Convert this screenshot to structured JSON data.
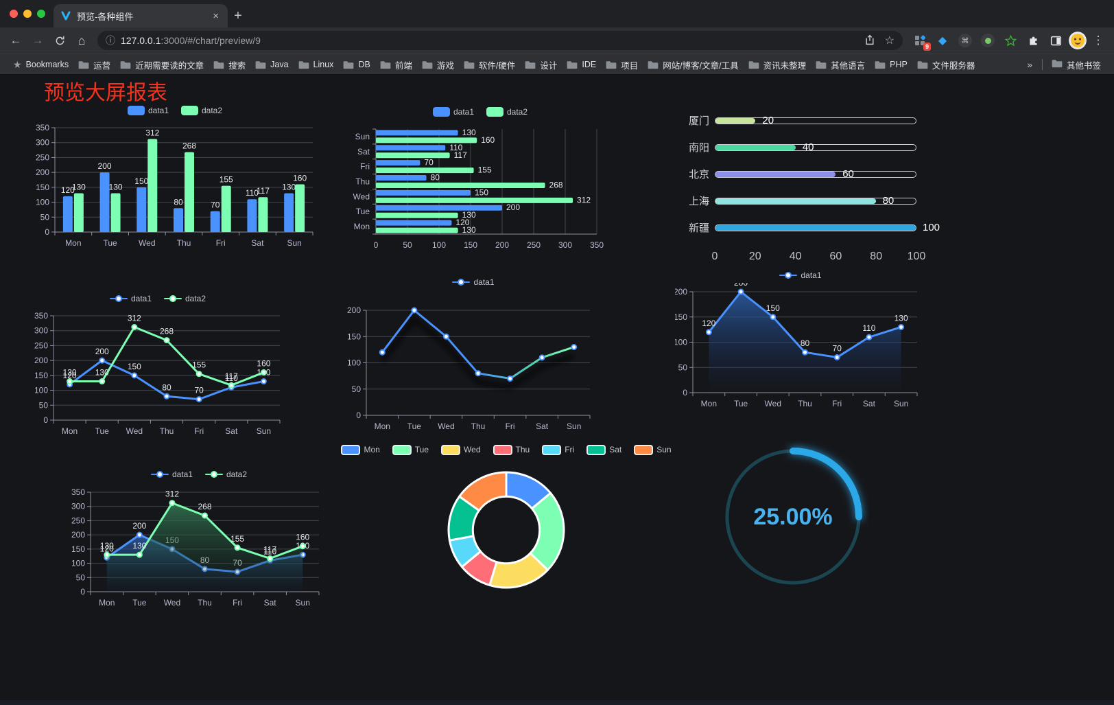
{
  "browser": {
    "window_controls": {
      "close": "#ff5f57",
      "minimize": "#febc2e",
      "zoom": "#28c840"
    },
    "tab": {
      "title": "预览-各种组件",
      "close_label": "×"
    },
    "new_tab_button": "+",
    "toolbar": {
      "back": "←",
      "forward": "→",
      "home": "⌂",
      "info": "ⓘ",
      "url_host": "127.0.0.1",
      "url_rest": ":3000/#/chart/preview/9",
      "extensions_badge": "9",
      "command_glyph": "⌘",
      "menu": "⋮",
      "star": "☆",
      "gem": "◆"
    },
    "bookmarks_bar": {
      "bookmarks_label": "Bookmarks",
      "folders": [
        "运营",
        "近期需要读的文章",
        "搜索",
        "Java",
        "Linux",
        "DB",
        "前端",
        "游戏",
        "软件/硬件",
        "设计",
        "IDE",
        "项目",
        "网站/博客/文章/工具",
        "资讯未整理",
        "其他语言",
        "PHP",
        "文件服务器"
      ],
      "overflow": "»",
      "other_bookmarks": "其他书签"
    }
  },
  "page": {
    "title": "预览大屏报表",
    "title_color": "#f5321c",
    "background": "#15161a"
  },
  "chart_data": [
    {
      "id": "bar-vertical",
      "type": "bar",
      "categories": [
        "Mon",
        "Tue",
        "Wed",
        "Thu",
        "Fri",
        "Sat",
        "Sun"
      ],
      "series": [
        {
          "name": "data1",
          "color": "#4992ff",
          "values": [
            120,
            200,
            150,
            80,
            70,
            110,
            130
          ]
        },
        {
          "name": "data2",
          "color": "#7cffb2",
          "values": [
            130,
            130,
            312,
            268,
            155,
            117,
            160
          ]
        }
      ],
      "ylim": [
        0,
        350
      ],
      "ytick_step": 50,
      "grid": true,
      "legend_position": "top"
    },
    {
      "id": "bar-horizontal",
      "type": "bar-horizontal",
      "categories": [
        "Mon",
        "Tue",
        "Wed",
        "Thu",
        "Fri",
        "Sat",
        "Sun"
      ],
      "series": [
        {
          "name": "data1",
          "color": "#4992ff",
          "values": [
            120,
            200,
            150,
            80,
            70,
            110,
            130
          ]
        },
        {
          "name": "data2",
          "color": "#7cffb2",
          "values": [
            130,
            130,
            312,
            268,
            155,
            117,
            160
          ]
        }
      ],
      "xlim": [
        0,
        350
      ],
      "xtick_step": 50,
      "grid": true,
      "legend_position": "top"
    },
    {
      "id": "city-progress",
      "type": "progress",
      "items": [
        {
          "label": "厦门",
          "value": 20,
          "color": "#c7e59b"
        },
        {
          "label": "南阳",
          "value": 40,
          "color": "#4cd7a0"
        },
        {
          "label": "北京",
          "value": 60,
          "color": "#8d90e8"
        },
        {
          "label": "上海",
          "value": 80,
          "color": "#8fe4df"
        },
        {
          "label": "新疆",
          "value": 100,
          "color": "#2ea7e0"
        }
      ],
      "max": 100,
      "ticks": [
        0,
        20,
        40,
        60,
        80,
        100
      ]
    },
    {
      "id": "line-dual",
      "type": "line",
      "categories": [
        "Mon",
        "Tue",
        "Wed",
        "Thu",
        "Fri",
        "Sat",
        "Sun"
      ],
      "series": [
        {
          "name": "data1",
          "color": "#4992ff",
          "values": [
            120,
            200,
            150,
            80,
            70,
            110,
            130
          ]
        },
        {
          "name": "data2",
          "color": "#7cffb2",
          "values": [
            130,
            130,
            312,
            268,
            155,
            117,
            160
          ]
        }
      ],
      "ylim": [
        0,
        350
      ],
      "ytick_step": 50,
      "show_labels": true
    },
    {
      "id": "line-gradient",
      "type": "line",
      "categories": [
        "Mon",
        "Tue",
        "Wed",
        "Thu",
        "Fri",
        "Sat",
        "Sun"
      ],
      "series": [
        {
          "name": "data1",
          "color": "#4992ff",
          "color_end": "#7cffb2",
          "gradient": true,
          "shadow": true,
          "values": [
            120,
            200,
            150,
            80,
            70,
            110,
            130
          ]
        }
      ],
      "ylim": [
        0,
        200
      ],
      "ytick_step": 50,
      "show_labels": false
    },
    {
      "id": "area-single",
      "type": "area",
      "categories": [
        "Mon",
        "Tue",
        "Wed",
        "Thu",
        "Fri",
        "Sat",
        "Sun"
      ],
      "series": [
        {
          "name": "data1",
          "color": "#4992ff",
          "area": true,
          "area_from": "rgba(45,95,170,0.85)",
          "area_to": "rgba(20,40,80,0.03)",
          "values": [
            120,
            200,
            150,
            80,
            70,
            110,
            130
          ]
        }
      ],
      "ylim": [
        0,
        200
      ],
      "ytick_step": 50,
      "show_labels": true
    },
    {
      "id": "area-dual",
      "type": "area",
      "categories": [
        "Mon",
        "Tue",
        "Wed",
        "Thu",
        "Fri",
        "Sat",
        "Sun"
      ],
      "series": [
        {
          "name": "data1",
          "color": "#4992ff",
          "area": true,
          "area_from": "rgba(45,95,170,0.85)",
          "area_to": "rgba(20,40,80,0.03)",
          "values": [
            120,
            200,
            150,
            80,
            70,
            110,
            130
          ]
        },
        {
          "name": "data2",
          "color": "#7cffb2",
          "area": true,
          "area_from": "rgba(50,115,80,0.9)",
          "area_to": "rgba(20,50,35,0.03)",
          "values": [
            130,
            130,
            312,
            268,
            155,
            117,
            160
          ]
        }
      ],
      "ylim": [
        0,
        350
      ],
      "ytick_step": 50,
      "show_labels": true
    },
    {
      "id": "week-donut",
      "type": "donut",
      "items": [
        {
          "label": "Mon",
          "value": 120,
          "color": "#4992ff"
        },
        {
          "label": "Tue",
          "value": 200,
          "color": "#7cffb2"
        },
        {
          "label": "Wed",
          "value": 150,
          "color": "#fddd60"
        },
        {
          "label": "Thu",
          "value": 80,
          "color": "#ff6e76"
        },
        {
          "label": "Fri",
          "value": 70,
          "color": "#58d9f9"
        },
        {
          "label": "Sat",
          "value": 110,
          "color": "#05c091"
        },
        {
          "label": "Sun",
          "value": 130,
          "color": "#ff8a45"
        }
      ],
      "border_color": "#ffffff",
      "inner_radius_ratio": 0.58
    },
    {
      "id": "ring-progress",
      "type": "gauge",
      "value": 25,
      "label": "25.00%",
      "progress_color": "#2aa8e8",
      "track_color": "#1c4552",
      "text_color": "#47b4f1"
    }
  ]
}
